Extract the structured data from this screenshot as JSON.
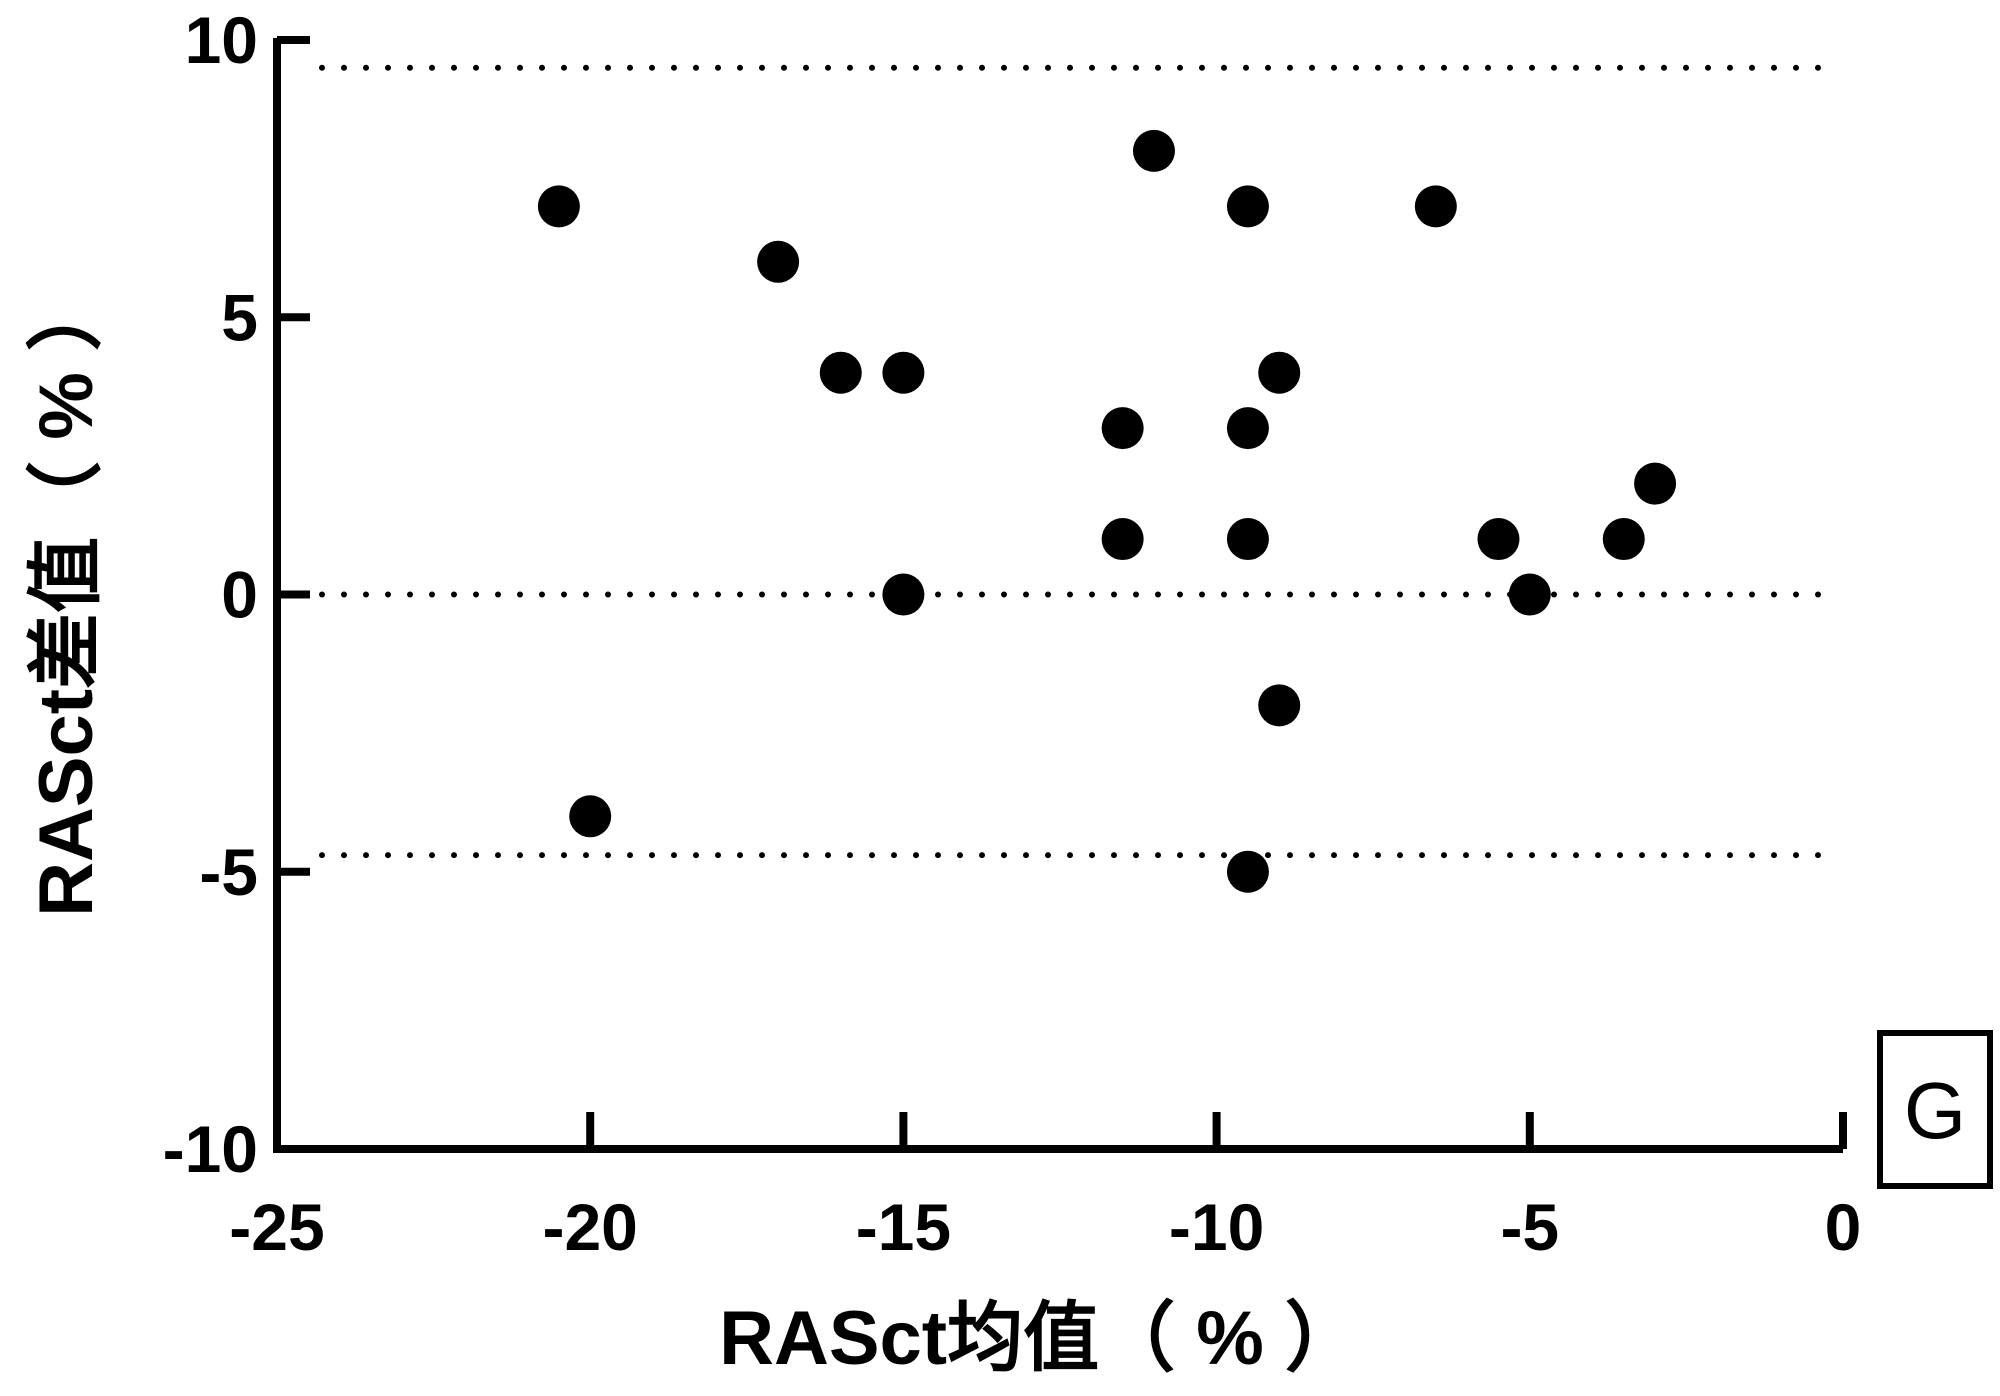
{
  "chart_data": {
    "type": "scatter",
    "xlabel": "RASct均值（ % ）",
    "ylabel": "RASct差值（ % ）",
    "xlim": [
      -25,
      0
    ],
    "ylim": [
      -10,
      10
    ],
    "xticks": [
      -25,
      -20,
      -15,
      -10,
      -5,
      0
    ],
    "yticks": [
      10,
      5,
      0,
      -5,
      -10
    ],
    "xtick_labels": [
      "-25",
      "-20",
      "-15",
      "-10",
      "-5",
      "0"
    ],
    "ytick_labels": [
      "10",
      "5",
      "0",
      "-5",
      "-10"
    ],
    "reference_lines": [
      9.5,
      0,
      -4.7
    ],
    "reference_line_style": "dotted",
    "grid": false,
    "panel_label": "G",
    "point_color": "#000000",
    "points": [
      {
        "x": -20.5,
        "y": 7
      },
      {
        "x": -20,
        "y": -4
      },
      {
        "x": -17,
        "y": 6
      },
      {
        "x": -16,
        "y": 4
      },
      {
        "x": -15,
        "y": 4
      },
      {
        "x": -15,
        "y": 0
      },
      {
        "x": -11.5,
        "y": 3
      },
      {
        "x": -11.5,
        "y": 1
      },
      {
        "x": -11,
        "y": 8
      },
      {
        "x": -9.5,
        "y": 7
      },
      {
        "x": -9.5,
        "y": 3
      },
      {
        "x": -9.5,
        "y": 1
      },
      {
        "x": -9.5,
        "y": -5
      },
      {
        "x": -9,
        "y": 4
      },
      {
        "x": -9,
        "y": -2
      },
      {
        "x": -6.5,
        "y": 7
      },
      {
        "x": -5.5,
        "y": 1
      },
      {
        "x": -5,
        "y": 0
      },
      {
        "x": -3.5,
        "y": 1
      },
      {
        "x": -3,
        "y": 2
      }
    ]
  }
}
